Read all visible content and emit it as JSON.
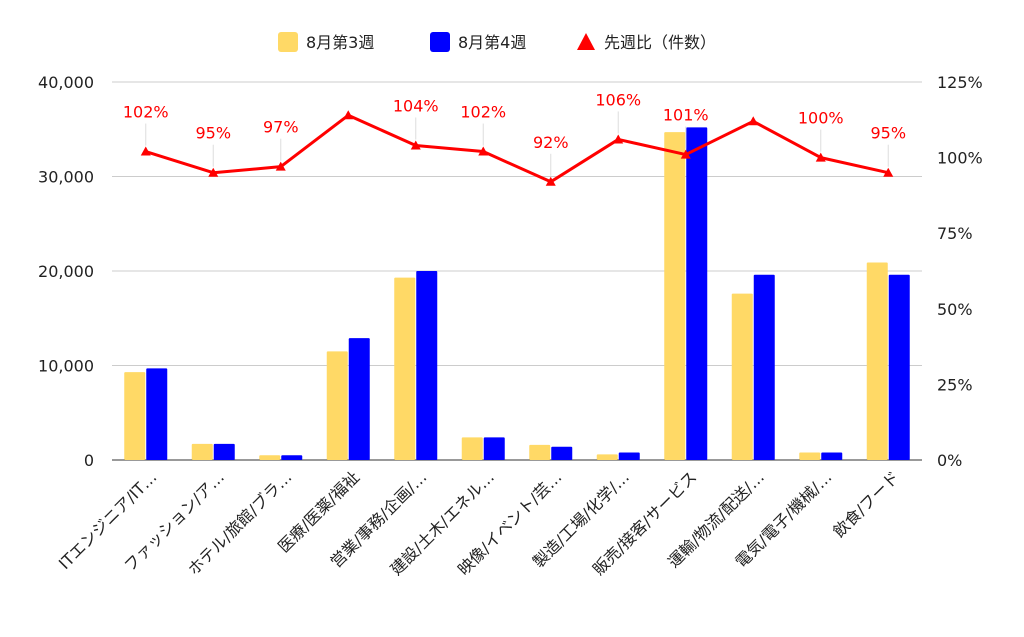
{
  "chart_data": {
    "type": "bar",
    "legend_position": "top-center",
    "grid": true,
    "categories": [
      "ITエンジニア/IT…",
      "ファッション/ア…",
      "ホテル/旅館/ブラ…",
      "医療/医薬/福祉",
      "営業/事務/企画/…",
      "建設/土木/エネル…",
      "映像/イベント/芸…",
      "製造/工場/化学/…",
      "販売/接客/サービス",
      "運輸/物流/配送/…",
      "電気/電子/機械/…",
      "飲食/フード"
    ],
    "series": [
      {
        "name": "8月第3週",
        "type": "bar",
        "axis": "left",
        "color": "#FFD966",
        "values": [
          9300,
          1700,
          500,
          11500,
          19300,
          2400,
          1600,
          600,
          34700,
          17600,
          800,
          20900
        ]
      },
      {
        "name": "8月第4週",
        "type": "bar",
        "axis": "left",
        "color": "#0000FF",
        "values": [
          9700,
          1700,
          500,
          12900,
          20000,
          2400,
          1400,
          800,
          35200,
          19600,
          800,
          19600
        ]
      },
      {
        "name": "先週比（件数）",
        "type": "line",
        "axis": "right",
        "color": "#FF0000",
        "marker": "triangle",
        "values": [
          102,
          95,
          97,
          114,
          104,
          102,
          92,
          106,
          101,
          112,
          100,
          95
        ],
        "labels": [
          "102%",
          "95%",
          "97%",
          "",
          "104%",
          "102%",
          "92%",
          "106%",
          "101%",
          "",
          "100%",
          "95%"
        ]
      }
    ],
    "y_left": {
      "min": 0,
      "max": 40000,
      "ticks": [
        "0",
        "10,000",
        "20,000",
        "30,000",
        "40,000"
      ]
    },
    "y_right": {
      "min": 0,
      "max": 125,
      "ticks": [
        "0%",
        "25%",
        "50%",
        "75%",
        "100%",
        "125%"
      ]
    }
  }
}
